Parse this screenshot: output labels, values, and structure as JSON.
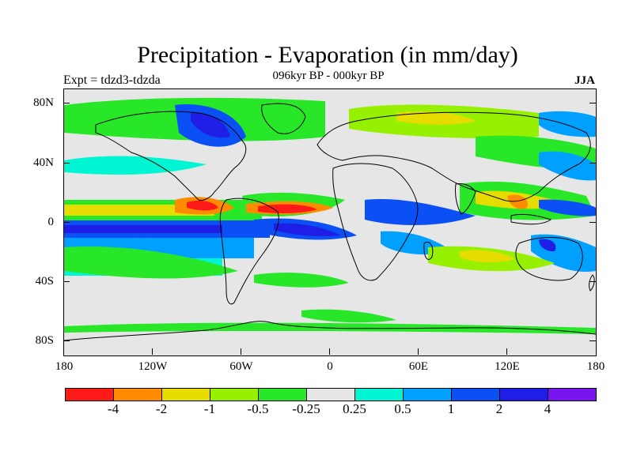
{
  "title": "Precipitation - Evaporation (in mm/day)",
  "subtitle": "096kyr BP - 000kyr BP",
  "experiment": "Expt = tdzd3-tdzda",
  "season": "JJA",
  "lat_labels": [
    "80N",
    "40N",
    "0",
    "40S",
    "80S"
  ],
  "lon_labels": [
    "180",
    "120W",
    "60W",
    "0",
    "60E",
    "120E",
    "180"
  ],
  "colorbar": {
    "colors": [
      "#ff1a1a",
      "#ff8c00",
      "#e6dc00",
      "#96f000",
      "#28e628",
      "#e6e6e6",
      "#00f5d2",
      "#00a0ff",
      "#0a50f5",
      "#1e1ee6",
      "#7814f0"
    ],
    "labels": [
      "-4",
      "-2",
      "-1",
      "-0.5",
      "-0.25",
      "0.25",
      "0.5",
      "1",
      "2",
      "4"
    ]
  },
  "field_colors": {
    "ocean_land_background": "#e6e6e6",
    "coastline": "#000000"
  }
}
